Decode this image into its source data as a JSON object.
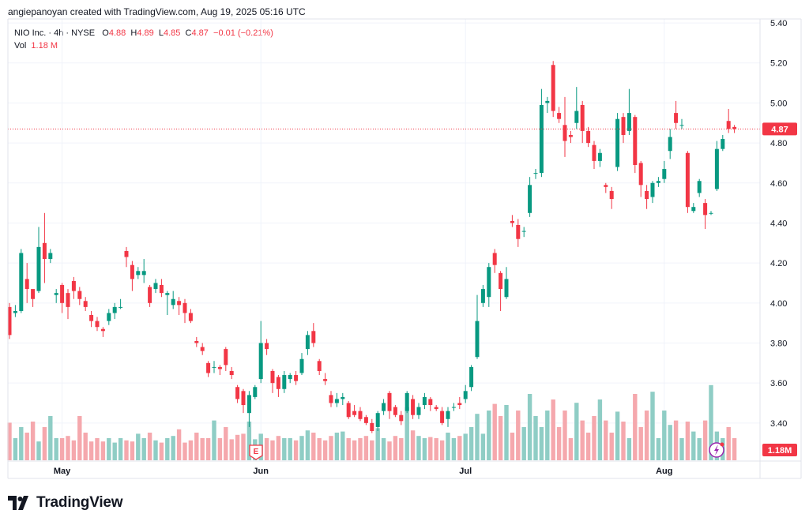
{
  "header": {
    "caption": "angiepanoyan created with TradingView.com, Aug 19, 2025 05:16 UTC"
  },
  "legend": {
    "symbol": "NIO Inc. · 4h · NYSE",
    "o_label": "O",
    "o_value": "4.88",
    "h_label": "H",
    "h_value": "4.89",
    "l_label": "L",
    "l_value": "4.85",
    "c_label": "C",
    "c_value": "4.87",
    "change": "−0.01 (−0.21%)",
    "vol_label": "Vol",
    "vol_value": "1.18 M"
  },
  "price_badge": "4.87",
  "volume_badge": "1.18M",
  "earnings_marker": "E",
  "brand": "TradingView",
  "colors": {
    "up": "#089981",
    "down": "#f23645",
    "up_vol": "#8fcdc5",
    "down_vol": "#f5a8ad"
  },
  "chart_data": {
    "type": "candlestick",
    "symbol": "NIO Inc.",
    "interval": "4h",
    "exchange": "NYSE",
    "y_ticks": [
      5.4,
      5.2,
      5.0,
      4.8,
      4.6,
      4.4,
      4.2,
      4.0,
      3.8,
      3.6,
      3.4
    ],
    "ylim": [
      3.21,
      5.42
    ],
    "x_labels": [
      {
        "label": "May",
        "index": 9
      },
      {
        "label": "Jun",
        "index": 43
      },
      {
        "label": "Jul",
        "index": 78
      },
      {
        "label": "Aug",
        "index": 112
      }
    ],
    "last_price": 4.87,
    "grid": true,
    "candles": [
      [
        3.98,
        3.84,
        3.82,
        4.0
      ],
      [
        3.95,
        3.96,
        3.93,
        3.99
      ],
      [
        3.96,
        4.25,
        3.95,
        4.27
      ],
      [
        4.12,
        4.07,
        4.0,
        4.2
      ],
      [
        4.07,
        4.02,
        3.98,
        4.05
      ],
      [
        4.06,
        4.28,
        4.05,
        4.38
      ],
      [
        4.3,
        4.22,
        4.1,
        4.45
      ],
      [
        4.22,
        4.25,
        4.2,
        4.27
      ],
      [
        4.04,
        4.05,
        4.0,
        4.07
      ],
      [
        4.09,
        4.0,
        3.95,
        4.1
      ],
      [
        4.05,
        3.98,
        3.92,
        4.07
      ],
      [
        4.11,
        4.06,
        4.02,
        4.13
      ],
      [
        4.06,
        4.02,
        3.99,
        4.08
      ],
      [
        4.01,
        3.98,
        3.96,
        4.03
      ],
      [
        3.94,
        3.91,
        3.88,
        3.96
      ],
      [
        3.91,
        3.88,
        3.86,
        3.93
      ],
      [
        3.87,
        3.86,
        3.83,
        3.88
      ],
      [
        3.91,
        3.95,
        3.89,
        3.97
      ],
      [
        3.95,
        3.98,
        3.92,
        4.0
      ],
      [
        3.98,
        3.98,
        3.97,
        4.02
      ],
      [
        4.26,
        4.23,
        4.18,
        4.28
      ],
      [
        4.19,
        4.12,
        4.06,
        4.21
      ],
      [
        4.14,
        4.16,
        4.12,
        4.18
      ],
      [
        4.14,
        4.16,
        4.1,
        4.22
      ],
      [
        4.08,
        4.0,
        3.98,
        4.09
      ],
      [
        4.07,
        4.1,
        4.05,
        4.12
      ],
      [
        4.09,
        4.05,
        4.03,
        4.12
      ],
      [
        4.04,
        4.05,
        3.94,
        4.06
      ],
      [
        3.99,
        4.02,
        3.97,
        4.06
      ],
      [
        4.01,
        3.99,
        3.94,
        4.03
      ],
      [
        4.0,
        3.95,
        3.9,
        4.02
      ],
      [
        3.95,
        3.91,
        3.9,
        3.97
      ],
      [
        3.81,
        3.8,
        3.78,
        3.83
      ],
      [
        3.78,
        3.76,
        3.74,
        3.8
      ],
      [
        3.7,
        3.65,
        3.63,
        3.71
      ],
      [
        3.68,
        3.68,
        3.65,
        3.71
      ],
      [
        3.68,
        3.67,
        3.64,
        3.69
      ],
      [
        3.77,
        3.69,
        3.66,
        3.78
      ],
      [
        3.66,
        3.64,
        3.62,
        3.68
      ],
      [
        3.58,
        3.52,
        3.5,
        3.59
      ],
      [
        3.56,
        3.49,
        3.45,
        3.57
      ],
      [
        3.45,
        3.54,
        3.38,
        3.56
      ],
      [
        3.53,
        3.58,
        3.52,
        3.59
      ],
      [
        3.62,
        3.8,
        3.6,
        3.91
      ],
      [
        3.8,
        3.77,
        3.74,
        3.82
      ],
      [
        3.66,
        3.6,
        3.55,
        3.67
      ],
      [
        3.63,
        3.57,
        3.53,
        3.64
      ],
      [
        3.57,
        3.64,
        3.55,
        3.66
      ],
      [
        3.62,
        3.64,
        3.6,
        3.65
      ],
      [
        3.64,
        3.61,
        3.59,
        3.66
      ],
      [
        3.65,
        3.72,
        3.64,
        3.75
      ],
      [
        3.77,
        3.84,
        3.74,
        3.86
      ],
      [
        3.86,
        3.8,
        3.78,
        3.9
      ],
      [
        3.71,
        3.66,
        3.64,
        3.72
      ],
      [
        3.62,
        3.61,
        3.59,
        3.65
      ],
      [
        3.54,
        3.5,
        3.48,
        3.56
      ],
      [
        3.5,
        3.52,
        3.48,
        3.55
      ],
      [
        3.52,
        3.53,
        3.49,
        3.55
      ],
      [
        3.5,
        3.43,
        3.42,
        3.51
      ],
      [
        3.46,
        3.44,
        3.43,
        3.49
      ],
      [
        3.46,
        3.42,
        3.41,
        3.48
      ],
      [
        3.43,
        3.4,
        3.39,
        3.44
      ],
      [
        3.4,
        3.36,
        3.35,
        3.42
      ],
      [
        3.38,
        3.45,
        3.36,
        3.46
      ],
      [
        3.46,
        3.5,
        3.44,
        3.52
      ],
      [
        3.55,
        3.46,
        3.42,
        3.56
      ],
      [
        3.48,
        3.44,
        3.43,
        3.49
      ],
      [
        3.44,
        3.41,
        3.39,
        3.46
      ],
      [
        3.46,
        3.55,
        3.45,
        3.56
      ],
      [
        3.52,
        3.44,
        3.42,
        3.54
      ],
      [
        3.44,
        3.48,
        3.42,
        3.5
      ],
      [
        3.49,
        3.53,
        3.47,
        3.55
      ],
      [
        3.52,
        3.49,
        3.46,
        3.53
      ],
      [
        3.48,
        3.47,
        3.46,
        3.49
      ],
      [
        3.46,
        3.4,
        3.39,
        3.48
      ],
      [
        3.42,
        3.46,
        3.38,
        3.48
      ],
      [
        3.48,
        3.48,
        3.46,
        3.5
      ],
      [
        3.5,
        3.49,
        3.47,
        3.53
      ],
      [
        3.52,
        3.56,
        3.5,
        3.59
      ],
      [
        3.58,
        3.68,
        3.56,
        3.69
      ],
      [
        3.73,
        3.91,
        3.72,
        4.04
      ],
      [
        4.0,
        4.07,
        3.98,
        4.09
      ],
      [
        4.03,
        4.18,
        3.98,
        4.2
      ],
      [
        4.25,
        4.19,
        4.15,
        4.27
      ],
      [
        4.15,
        4.07,
        3.96,
        4.16
      ],
      [
        4.03,
        4.12,
        4.02,
        4.18
      ],
      [
        4.41,
        4.4,
        4.38,
        4.44
      ],
      [
        4.39,
        4.32,
        4.28,
        4.42
      ],
      [
        4.36,
        4.36,
        4.33,
        4.38
      ],
      [
        4.45,
        4.59,
        4.43,
        4.63
      ],
      [
        4.65,
        4.65,
        4.62,
        4.67
      ],
      [
        4.65,
        4.99,
        4.63,
        5.07
      ],
      [
        5.0,
        5.01,
        4.95,
        5.03
      ],
      [
        5.19,
        4.96,
        4.93,
        5.21
      ],
      [
        4.95,
        4.92,
        4.9,
        4.98
      ],
      [
        4.89,
        4.81,
        4.73,
        5.03
      ],
      [
        4.84,
        4.83,
        4.8,
        4.86
      ],
      [
        4.9,
        4.96,
        4.87,
        5.08
      ],
      [
        4.99,
        4.86,
        4.8,
        5.01
      ],
      [
        4.86,
        4.8,
        4.78,
        4.88
      ],
      [
        4.79,
        4.71,
        4.67,
        4.81
      ],
      [
        4.71,
        4.75,
        4.68,
        4.77
      ],
      [
        4.59,
        4.58,
        4.55,
        4.6
      ],
      [
        4.56,
        4.52,
        4.47,
        4.58
      ],
      [
        4.68,
        4.92,
        4.66,
        4.95
      ],
      [
        4.93,
        4.84,
        4.8,
        4.95
      ],
      [
        4.86,
        4.95,
        4.84,
        5.07
      ],
      [
        4.93,
        4.69,
        4.65,
        4.94
      ],
      [
        4.7,
        4.59,
        4.53,
        4.71
      ],
      [
        4.56,
        4.52,
        4.47,
        4.59
      ],
      [
        4.53,
        4.6,
        4.5,
        4.61
      ],
      [
        4.6,
        4.61,
        4.58,
        4.63
      ],
      [
        4.62,
        4.67,
        4.6,
        4.71
      ],
      [
        4.76,
        4.83,
        4.72,
        4.87
      ],
      [
        4.95,
        4.9,
        4.87,
        5.01
      ],
      [
        4.89,
        4.89,
        4.87,
        4.92
      ],
      [
        4.75,
        4.48,
        4.45,
        4.76
      ],
      [
        4.46,
        4.48,
        4.45,
        4.5
      ],
      [
        4.55,
        4.61,
        4.53,
        4.62
      ],
      [
        4.5,
        4.44,
        4.37,
        4.52
      ],
      [
        4.45,
        4.45,
        4.44,
        4.46
      ],
      [
        4.57,
        4.77,
        4.56,
        4.81
      ],
      [
        4.77,
        4.82,
        4.76,
        4.84
      ],
      [
        4.91,
        4.87,
        4.85,
        4.97
      ],
      [
        4.88,
        4.87,
        4.85,
        4.89
      ]
    ],
    "volumes": [
      0.34,
      0.2,
      0.3,
      0.25,
      0.35,
      0.17,
      0.3,
      0.4,
      0.2,
      0.2,
      0.22,
      0.18,
      0.4,
      0.25,
      0.17,
      0.2,
      0.17,
      0.2,
      0.16,
      0.2,
      0.18,
      0.17,
      0.24,
      0.2,
      0.25,
      0.18,
      0.16,
      0.2,
      0.22,
      0.28,
      0.16,
      0.18,
      0.25,
      0.2,
      0.2,
      0.36,
      0.2,
      0.3,
      0.19,
      0.23,
      0.24,
      0.35,
      0.19,
      0.24,
      0.2,
      0.18,
      0.22,
      0.2,
      0.2,
      0.18,
      0.22,
      0.27,
      0.25,
      0.2,
      0.18,
      0.22,
      0.25,
      0.26,
      0.2,
      0.18,
      0.2,
      0.22,
      0.18,
      0.29,
      0.2,
      0.17,
      0.22,
      0.2,
      0.48,
      0.27,
      0.22,
      0.2,
      0.21,
      0.2,
      0.18,
      0.25,
      0.2,
      0.22,
      0.24,
      0.3,
      0.42,
      0.24,
      0.45,
      0.51,
      0.4,
      0.5,
      0.25,
      0.45,
      0.3,
      0.6,
      0.4,
      0.3,
      0.45,
      0.55,
      0.3,
      0.45,
      0.2,
      0.52,
      0.36,
      0.25,
      0.4,
      0.55,
      0.36,
      0.25,
      0.44,
      0.35,
      0.2,
      0.6,
      0.3,
      0.45,
      0.62,
      0.2,
      0.45,
      0.32,
      0.36,
      0.2,
      0.35,
      0.26,
      0.2,
      0.36,
      0.68,
      0.26,
      0.2,
      0.3,
      0.2,
      0.45,
      0.24,
      0.38,
      0.25
    ]
  }
}
